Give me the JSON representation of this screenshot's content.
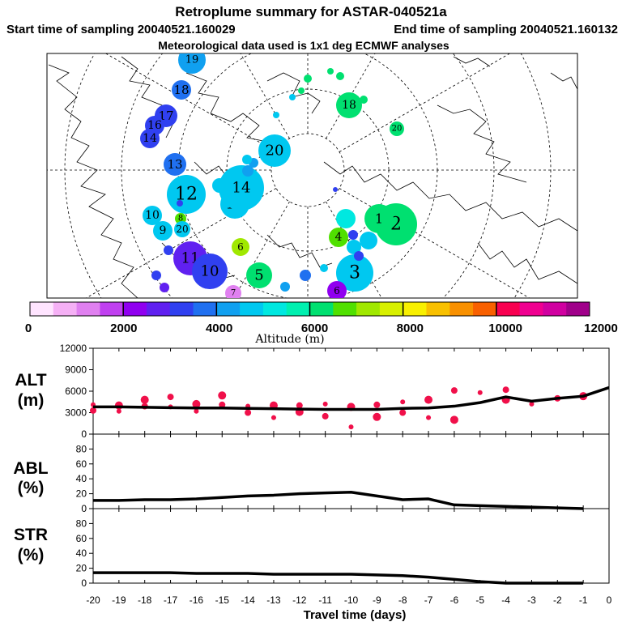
{
  "header": {
    "title": "Retroplume summary for ASTAR-040521a",
    "start_time": "Start time of sampling 20040521.160029",
    "end_time": "End time of sampling 20040521.160132",
    "meteo": "Meteorological data used is 1x1 deg ECMWF analyses"
  },
  "colorbar": {
    "label": "Altitude (m)",
    "tick_labels": [
      "0",
      "2000",
      "4000",
      "6000",
      "8000",
      "10000",
      "12000"
    ],
    "colors": [
      "#ffe4ff",
      "#f5b0f5",
      "#e080f0",
      "#c040f0",
      "#9000f0",
      "#6020f0",
      "#3040f0",
      "#2070f0",
      "#10a0f0",
      "#00c8f0",
      "#00e8e0",
      "#00f0b0",
      "#00e070",
      "#50e000",
      "#a0e800",
      "#d8f000",
      "#f8f000",
      "#f8c000",
      "#f89000",
      "#f86000",
      "#f80050",
      "#f00090",
      "#d000a0",
      "#a0008a"
    ]
  },
  "map_labels": [
    {
      "text": "19",
      "lon": "",
      "c": "#10a0f0"
    },
    {
      "text": "18",
      "c": "#2070f0"
    },
    {
      "text": "17",
      "c": "#3040f0"
    },
    {
      "text": "16",
      "c": "#3040f0"
    },
    {
      "text": "14",
      "c": "#3040f0"
    },
    {
      "text": "13",
      "c": "#2070f0"
    },
    {
      "text": "12",
      "c": "#00c8f0"
    },
    {
      "text": "15",
      "c": "#00c8f0"
    },
    {
      "text": "14",
      "c": "#00c8f0"
    },
    {
      "text": "10",
      "c": "#00c8f0"
    },
    {
      "text": "9",
      "c": "#00c8f0"
    },
    {
      "text": "8",
      "c": "#50e000"
    },
    {
      "text": "20",
      "c": "#00c8f0"
    },
    {
      "text": "11",
      "c": "#6020f0"
    },
    {
      "text": "10",
      "c": "#3040f0"
    },
    {
      "text": "6",
      "c": "#a0e800"
    },
    {
      "text": "5",
      "c": "#00e070"
    },
    {
      "text": "7",
      "c": "#e080f0"
    },
    {
      "text": "4",
      "c": "#50e000"
    },
    {
      "text": "3",
      "c": "#00c8f0"
    },
    {
      "text": "2",
      "c": "#00e070"
    },
    {
      "text": "1",
      "c": "#00e070"
    },
    {
      "text": "20",
      "c": "#00c8f0"
    },
    {
      "text": "18",
      "c": "#00e070"
    },
    {
      "text": "20",
      "c": "#00e070"
    },
    {
      "text": "6",
      "c": "#9000f0"
    }
  ],
  "panels": {
    "alt": {
      "title": "ALT",
      "unit": "(m)"
    },
    "abl": {
      "title": "ABL",
      "unit": "(%)"
    },
    "str": {
      "title": "STR",
      "unit": "(%)"
    }
  },
  "xlabel": "Travel time (days)",
  "chart_data": [
    {
      "type": "line",
      "title": "ALT",
      "ylabel": "(m)",
      "x": [
        -20,
        -19,
        -18,
        -17,
        -16,
        -15,
        -14,
        -13,
        -12,
        -11,
        -10,
        -9,
        -8,
        -7,
        -6,
        -5,
        -4,
        -3,
        -2,
        -1,
        0
      ],
      "values": [
        3800,
        3800,
        3750,
        3700,
        3650,
        3650,
        3600,
        3550,
        3500,
        3450,
        3450,
        3450,
        3600,
        3650,
        3900,
        4400,
        5200,
        4600,
        5000,
        5300,
        6500
      ],
      "ylim": [
        0,
        12000
      ],
      "yticks": [
        "0",
        "3000",
        "6000",
        "9000",
        "12000"
      ],
      "cluster_points": [
        {
          "x": -20,
          "y": 4100
        },
        {
          "x": -20,
          "y": 3300
        },
        {
          "x": -19,
          "y": 4000
        },
        {
          "x": -19,
          "y": 3200
        },
        {
          "x": -18,
          "y": 3900
        },
        {
          "x": -18,
          "y": 4800
        },
        {
          "x": -17,
          "y": 3800
        },
        {
          "x": -17,
          "y": 5200
        },
        {
          "x": -16,
          "y": 4200
        },
        {
          "x": -16,
          "y": 3200
        },
        {
          "x": -15,
          "y": 4100
        },
        {
          "x": -15,
          "y": 5400
        },
        {
          "x": -14,
          "y": 3900
        },
        {
          "x": -14,
          "y": 3000
        },
        {
          "x": -13,
          "y": 4000
        },
        {
          "x": -13,
          "y": 2300
        },
        {
          "x": -12,
          "y": 4000
        },
        {
          "x": -12,
          "y": 3100
        },
        {
          "x": -11,
          "y": 4200
        },
        {
          "x": -11,
          "y": 2500
        },
        {
          "x": -10,
          "y": 3800
        },
        {
          "x": -10,
          "y": 1000
        },
        {
          "x": -9,
          "y": 4100
        },
        {
          "x": -9,
          "y": 2400
        },
        {
          "x": -8,
          "y": 4500
        },
        {
          "x": -8,
          "y": 3000
        },
        {
          "x": -7,
          "y": 4800
        },
        {
          "x": -7,
          "y": 2300
        },
        {
          "x": -6,
          "y": 6100
        },
        {
          "x": -6,
          "y": 2000
        },
        {
          "x": -5,
          "y": 5800
        },
        {
          "x": -4,
          "y": 6200
        },
        {
          "x": -4,
          "y": 4800
        },
        {
          "x": -3,
          "y": 4200
        },
        {
          "x": -2,
          "y": 5000
        },
        {
          "x": -1,
          "y": 5300
        }
      ]
    },
    {
      "type": "line",
      "title": "ABL",
      "ylabel": "(%)",
      "x": [
        -20,
        -19,
        -18,
        -17,
        -16,
        -15,
        -14,
        -13,
        -12,
        -11,
        -10,
        -9,
        -8,
        -7,
        -6,
        -5,
        -4,
        -3,
        -2,
        -1
      ],
      "values": [
        11,
        11,
        12,
        12,
        13,
        15,
        17,
        18,
        20,
        21,
        22,
        17,
        12,
        13,
        5,
        4,
        3,
        2,
        1,
        0
      ],
      "ylim": [
        0,
        100
      ],
      "yticks": [
        "0",
        "20",
        "40",
        "60",
        "80"
      ]
    },
    {
      "type": "line",
      "title": "STR",
      "ylabel": "(%)",
      "x": [
        -20,
        -19,
        -18,
        -17,
        -16,
        -15,
        -14,
        -13,
        -12,
        -11,
        -10,
        -9,
        -8,
        -7,
        -6,
        -5,
        -4,
        -3,
        -2,
        -1
      ],
      "values": [
        14,
        14,
        14,
        14,
        13,
        13,
        13,
        12,
        12,
        12,
        12,
        11,
        10,
        8,
        5,
        2,
        0,
        0,
        0,
        0
      ],
      "ylim": [
        0,
        100
      ],
      "yticks": [
        "0",
        "20",
        "40",
        "60",
        "80"
      ]
    }
  ],
  "xticks": [
    "-20",
    "-19",
    "-18",
    "-17",
    "-16",
    "-15",
    "-14",
    "-13",
    "-12",
    "-11",
    "-10",
    "-9",
    "-8",
    "-7",
    "-6",
    "-5",
    "-4",
    "-3",
    "-2",
    "-1",
    "0"
  ]
}
